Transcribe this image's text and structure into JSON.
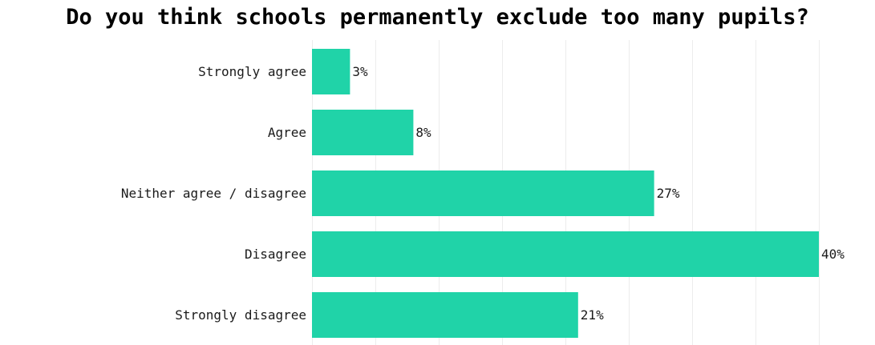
{
  "chart_data": {
    "type": "bar",
    "orientation": "horizontal",
    "title": "Do you think schools permanently exclude too many pupils?",
    "categories": [
      "Strongly agree",
      "Agree",
      "Neither agree / disagree",
      "Disagree",
      "Strongly disagree"
    ],
    "values": [
      3,
      8,
      27,
      40,
      21
    ],
    "value_labels": [
      "3%",
      "8%",
      "27%",
      "40%",
      "21%"
    ],
    "xlabel": "",
    "ylabel": "",
    "xlim": [
      0,
      40
    ],
    "grid": true,
    "bar_color": "#20d3a8",
    "gridline_color": "#ececec"
  }
}
